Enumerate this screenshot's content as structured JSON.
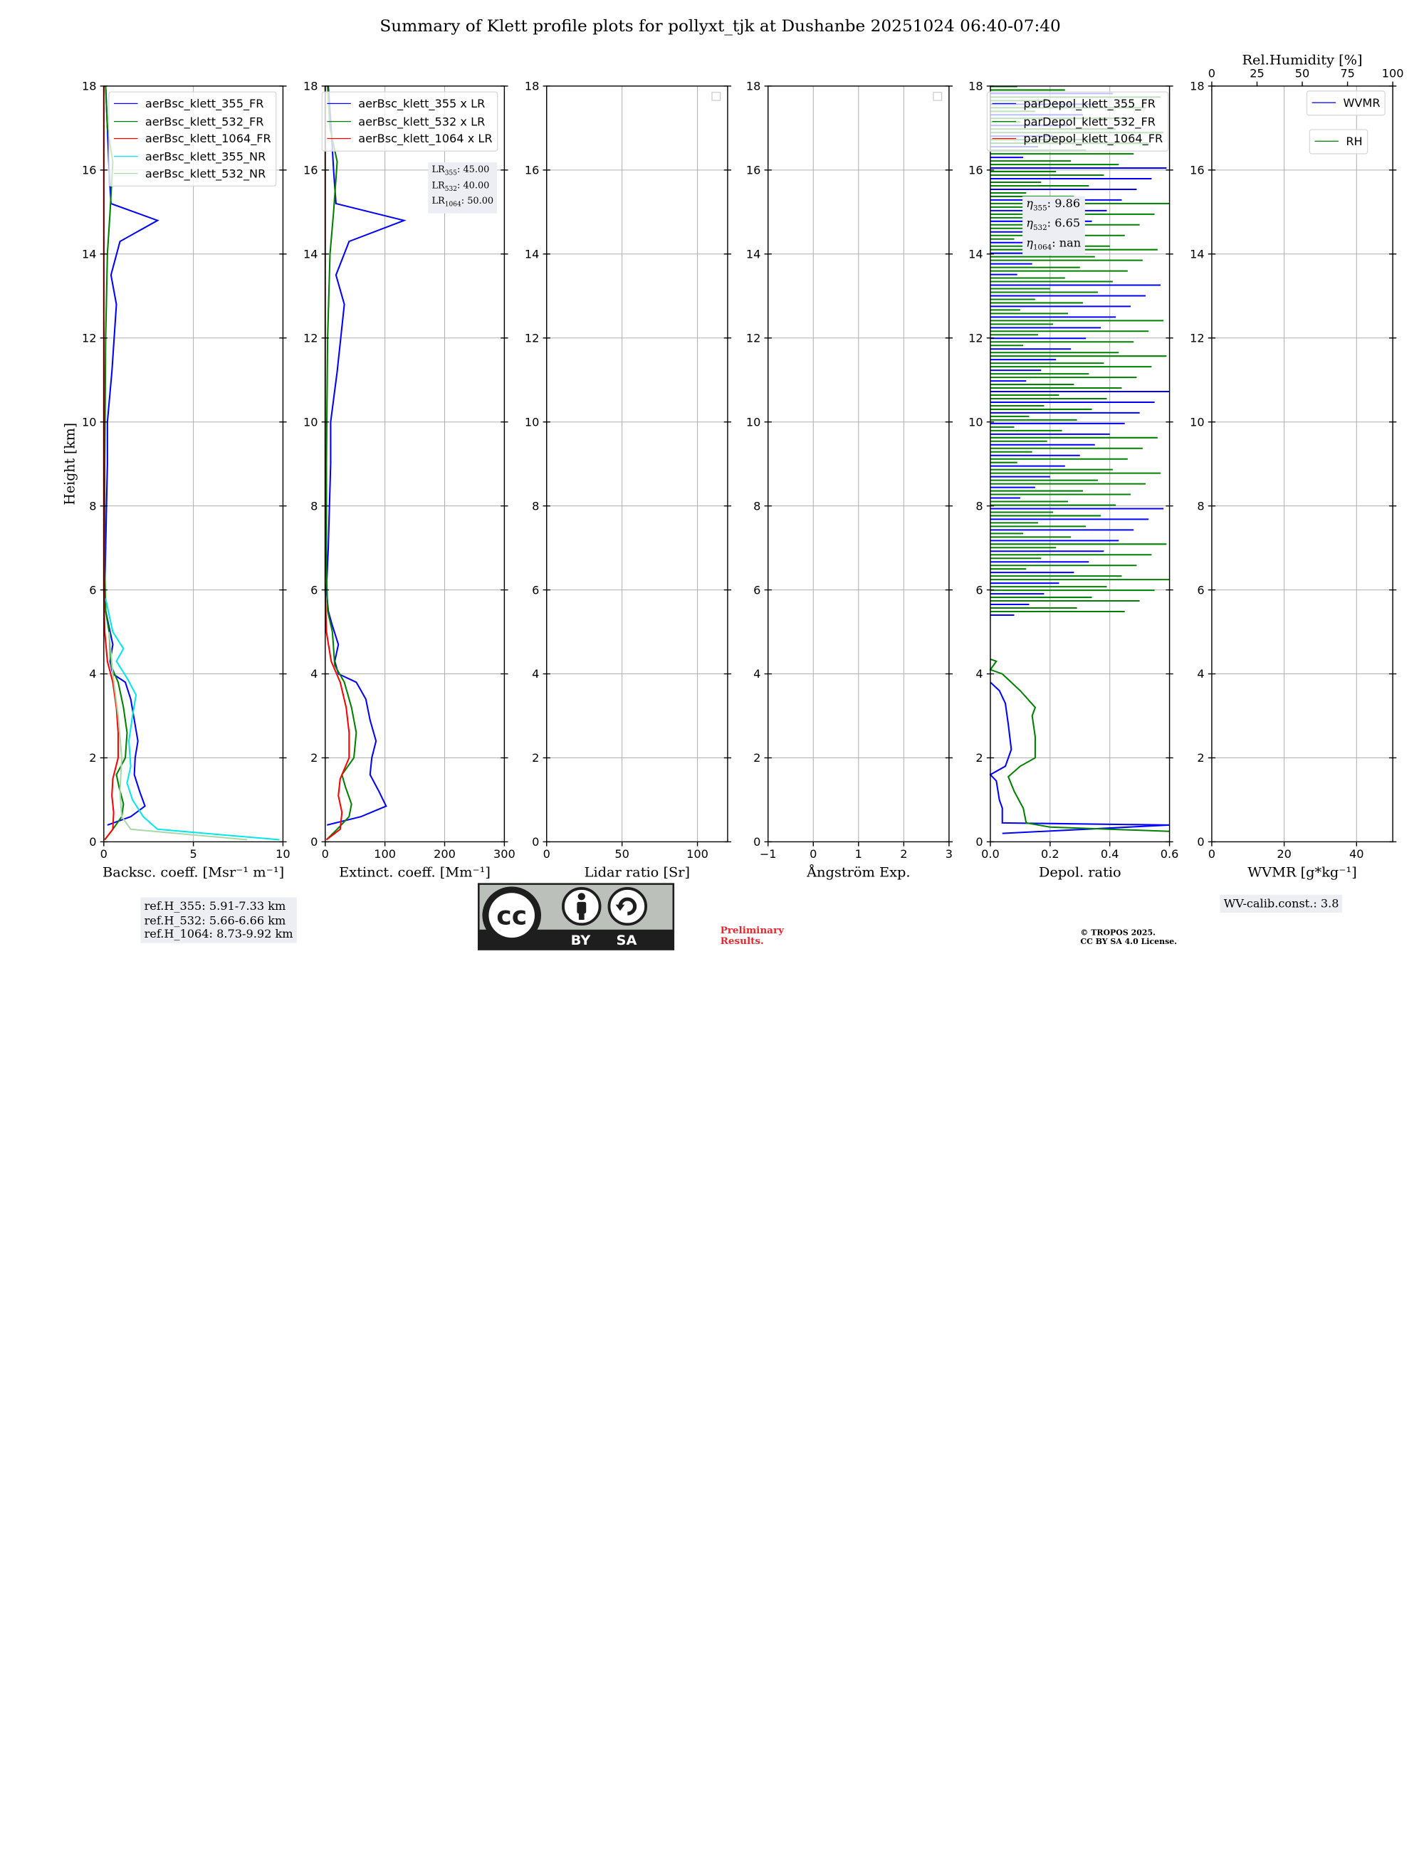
{
  "title": "Summary of Klett profile plots for pollyxt_tjk at Dushanbe 20251024 06:40-07:40",
  "colors": {
    "blue": "#0000ff",
    "green": "#008000",
    "red": "#ff0000",
    "cyan": "#00e5ee",
    "lightblue": "#b4b4ff",
    "lightgreen": "#a8d8a8",
    "grid": "#b0b0b0"
  },
  "chart_data": [
    {
      "type": "line",
      "name": "backscatter",
      "xlabel": "Backsc. coeff. [Msr⁻¹ m⁻¹]",
      "ylabel": "Height [km]",
      "xlim": [
        0,
        10
      ],
      "ylim": [
        0,
        18
      ],
      "xticks": [
        "0",
        "5",
        "10"
      ],
      "yticks": [
        "0",
        "2",
        "4",
        "6",
        "8",
        "10",
        "12",
        "14",
        "16",
        "18"
      ],
      "legend": [
        "aerBsc_klett_355_FR",
        "aerBsc_klett_532_FR",
        "aerBsc_klett_1064_FR",
        "aerBsc_klett_355_NR",
        "aerBsc_klett_532_NR"
      ],
      "series": [
        {
          "name": "aerBsc_klett_355_FR",
          "color": "blue",
          "points": [
            [
              0.2,
              0.4
            ],
            [
              1.5,
              0.6
            ],
            [
              2.3,
              0.85
            ],
            [
              2.0,
              1.2
            ],
            [
              1.7,
              1.6
            ],
            [
              1.75,
              2.0
            ],
            [
              1.9,
              2.4
            ],
            [
              1.7,
              2.9
            ],
            [
              1.5,
              3.4
            ],
            [
              1.2,
              3.8
            ],
            [
              0.5,
              4.0
            ],
            [
              0.35,
              4.3
            ],
            [
              0.5,
              4.7
            ],
            [
              0.25,
              5.2
            ],
            [
              0.1,
              5.5
            ],
            [
              0.05,
              6.0
            ],
            [
              0.1,
              7.0
            ],
            [
              0.15,
              8.0
            ],
            [
              0.2,
              9.0
            ],
            [
              0.2,
              10.0
            ],
            [
              0.45,
              11.2
            ],
            [
              0.7,
              12.8
            ],
            [
              0.4,
              13.5
            ],
            [
              0.9,
              14.3
            ],
            [
              3.0,
              14.8
            ],
            [
              0.4,
              15.2
            ],
            [
              0.3,
              16.0
            ],
            [
              0.2,
              17.0
            ],
            [
              0.1,
              18.0
            ]
          ]
        },
        {
          "name": "aerBsc_klett_532_FR",
          "color": "green",
          "points": [
            [
              0.05,
              0.05
            ],
            [
              0.5,
              0.3
            ],
            [
              1.0,
              0.6
            ],
            [
              1.1,
              0.9
            ],
            [
              0.85,
              1.3
            ],
            [
              0.7,
              1.6
            ],
            [
              1.2,
              2.0
            ],
            [
              1.3,
              2.6
            ],
            [
              1.1,
              3.2
            ],
            [
              0.8,
              3.8
            ],
            [
              0.4,
              4.2
            ],
            [
              0.3,
              5.0
            ],
            [
              0.1,
              5.5
            ],
            [
              0.05,
              6.5
            ],
            [
              0.05,
              9.0
            ],
            [
              0.1,
              12.0
            ],
            [
              0.2,
              14.0
            ],
            [
              0.35,
              15.0
            ],
            [
              0.5,
              16.2
            ],
            [
              0.2,
              17.0
            ],
            [
              0.1,
              18.0
            ]
          ]
        },
        {
          "name": "aerBsc_klett_1064_FR",
          "color": "red",
          "points": [
            [
              0.05,
              0.05
            ],
            [
              0.5,
              0.3
            ],
            [
              0.55,
              0.7
            ],
            [
              0.45,
              1.1
            ],
            [
              0.5,
              1.5
            ],
            [
              0.8,
              2.0
            ],
            [
              0.8,
              2.6
            ],
            [
              0.7,
              3.2
            ],
            [
              0.5,
              3.8
            ],
            [
              0.2,
              4.3
            ],
            [
              0.05,
              5.0
            ],
            [
              0.0,
              6.0
            ],
            [
              0.0,
              18.0
            ]
          ]
        },
        {
          "name": "aerBsc_klett_355_NR",
          "color": "cyan",
          "points": [
            [
              9.8,
              0.05
            ],
            [
              3.0,
              0.3
            ],
            [
              2.2,
              0.6
            ],
            [
              1.6,
              1.0
            ],
            [
              1.3,
              1.4
            ],
            [
              1.5,
              1.8
            ],
            [
              1.4,
              2.4
            ],
            [
              1.6,
              3.0
            ],
            [
              1.8,
              3.5
            ],
            [
              1.3,
              3.9
            ],
            [
              0.7,
              4.3
            ],
            [
              1.1,
              4.6
            ],
            [
              0.5,
              5.0
            ],
            [
              0.3,
              5.4
            ],
            [
              0.1,
              5.8
            ]
          ]
        },
        {
          "name": "aerBsc_klett_532_NR",
          "color": "lightgreen",
          "points": [
            [
              8.0,
              0.05
            ],
            [
              1.5,
              0.3
            ],
            [
              1.0,
              0.6
            ],
            [
              0.9,
              1.2
            ],
            [
              1.0,
              2.0
            ],
            [
              0.8,
              3.0
            ],
            [
              0.5,
              4.0
            ],
            [
              0.3,
              5.0
            ]
          ]
        }
      ],
      "refh": [
        "ref.H_355: 5.91-7.33 km",
        "ref.H_532: 5.66-6.66 km",
        "ref.H_1064: 8.73-9.92 km"
      ]
    },
    {
      "type": "line",
      "name": "extinction",
      "xlabel": "Extinct. coeff. [Mm⁻¹]",
      "xlim": [
        0,
        300
      ],
      "ylim": [
        0,
        18
      ],
      "xticks": [
        "0",
        "100",
        "200",
        "300"
      ],
      "yticks": [
        "0",
        "2",
        "4",
        "6",
        "8",
        "10",
        "12",
        "14",
        "16",
        "18"
      ],
      "legend": [
        "aerBsc_klett_355 x LR",
        "aerBsc_klett_532 x LR",
        "aerBsc_klett_1064 x LR"
      ],
      "lr": {
        "l355": "LR",
        "v355": ": 45.00",
        "s355": "355",
        "l532": "LR",
        "v532": ": 40.00",
        "s532": "532",
        "l1064": "LR",
        "v1064": ": 50.00",
        "s1064": "1064"
      },
      "series": [
        {
          "name": "355",
          "color": "blue",
          "points": [
            [
              3,
              0.4
            ],
            [
              60,
              0.6
            ],
            [
              102,
              0.85
            ],
            [
              90,
              1.2
            ],
            [
              75,
              1.6
            ],
            [
              78,
              2.0
            ],
            [
              85,
              2.4
            ],
            [
              75,
              2.9
            ],
            [
              68,
              3.4
            ],
            [
              52,
              3.8
            ],
            [
              22,
              4.0
            ],
            [
              16,
              4.3
            ],
            [
              22,
              4.7
            ],
            [
              11,
              5.2
            ],
            [
              5,
              5.5
            ],
            [
              2,
              6.0
            ],
            [
              5,
              7.0
            ],
            [
              7,
              8.0
            ],
            [
              9,
              9.0
            ],
            [
              9,
              10.0
            ],
            [
              20,
              11.2
            ],
            [
              32,
              12.8
            ],
            [
              18,
              13.5
            ],
            [
              40,
              14.3
            ],
            [
              132,
              14.8
            ],
            [
              18,
              15.2
            ],
            [
              14,
              16.0
            ],
            [
              10,
              17.0
            ],
            [
              5,
              18.0
            ]
          ]
        },
        {
          "name": "532",
          "color": "green",
          "points": [
            [
              2,
              0.05
            ],
            [
              20,
              0.3
            ],
            [
              40,
              0.6
            ],
            [
              44,
              0.9
            ],
            [
              34,
              1.3
            ],
            [
              28,
              1.6
            ],
            [
              48,
              2.0
            ],
            [
              52,
              2.6
            ],
            [
              44,
              3.2
            ],
            [
              32,
              3.8
            ],
            [
              16,
              4.2
            ],
            [
              12,
              5.0
            ],
            [
              4,
              5.5
            ],
            [
              2,
              6.5
            ],
            [
              2,
              9.0
            ],
            [
              4,
              12.0
            ],
            [
              8,
              14.0
            ],
            [
              14,
              15.0
            ],
            [
              20,
              16.2
            ],
            [
              8,
              17.0
            ],
            [
              4,
              18.0
            ]
          ]
        },
        {
          "name": "1064",
          "color": "red",
          "points": [
            [
              2,
              0.05
            ],
            [
              25,
              0.3
            ],
            [
              28,
              0.7
            ],
            [
              22,
              1.1
            ],
            [
              25,
              1.5
            ],
            [
              40,
              2.0
            ],
            [
              40,
              2.6
            ],
            [
              35,
              3.2
            ],
            [
              25,
              3.8
            ],
            [
              10,
              4.3
            ],
            [
              2,
              5.0
            ],
            [
              0,
              6.0
            ],
            [
              0,
              18.0
            ]
          ]
        }
      ]
    },
    {
      "type": "line",
      "name": "lidar_ratio",
      "xlabel": "Lidar ratio [Sr]",
      "xlim": [
        0,
        120
      ],
      "ylim": [
        0,
        18
      ],
      "xticks": [
        "0",
        "50",
        "100"
      ],
      "yticks": [
        "0",
        "2",
        "4",
        "6",
        "8",
        "10",
        "12",
        "14",
        "16",
        "18"
      ],
      "series": []
    },
    {
      "type": "line",
      "name": "angstrom",
      "xlabel": "Ångström Exp.",
      "xlim": [
        -1,
        3
      ],
      "ylim": [
        0,
        18
      ],
      "xticks": [
        "−1",
        "0",
        "1",
        "2",
        "3"
      ],
      "yticks": [
        "0",
        "2",
        "4",
        "6",
        "8",
        "10",
        "12",
        "14",
        "16",
        "18"
      ],
      "series": []
    },
    {
      "type": "line",
      "name": "depol",
      "xlabel": "Depol. ratio",
      "xlim": [
        0,
        0.6
      ],
      "ylim": [
        0,
        18
      ],
      "xticks": [
        "0.0",
        "0.2",
        "0.4",
        "0.6"
      ],
      "yticks": [
        "0",
        "2",
        "4",
        "6",
        "8",
        "10",
        "12",
        "14",
        "16",
        "18"
      ],
      "legend": [
        "parDepol_klett_355_FR",
        "parDepol_klett_532_FR",
        "parDepol_klett_1064_FR"
      ],
      "eta": {
        "l355": "η",
        "s355": "355",
        "v355": ": 9.86",
        "l532": "η",
        "s532": "532",
        "v532": ": 6.65",
        "l1064": "η",
        "s1064": "1064",
        "v1064": ": nan"
      },
      "series": [
        {
          "name": "parDepol_klett_355_FR",
          "color": "blue",
          "points": [
            [
              0.04,
              0.2
            ],
            [
              0.6,
              0.4
            ],
            [
              0.04,
              0.45
            ],
            [
              0.04,
              0.8
            ],
            [
              0.03,
              1.0
            ],
            [
              0.02,
              1.45
            ],
            [
              0.0,
              1.6
            ],
            [
              0.05,
              1.8
            ],
            [
              0.07,
              2.2
            ],
            [
              0.06,
              2.8
            ],
            [
              0.05,
              3.3
            ],
            [
              0.03,
              3.6
            ],
            [
              0.0,
              3.8
            ]
          ]
        },
        {
          "name": "parDepol_klett_532_FR",
          "color": "green",
          "points": [
            [
              0.6,
              0.25
            ],
            [
              0.2,
              0.35
            ],
            [
              0.12,
              0.45
            ],
            [
              0.11,
              0.8
            ],
            [
              0.08,
              1.2
            ],
            [
              0.06,
              1.55
            ],
            [
              0.1,
              1.8
            ],
            [
              0.15,
              2.0
            ],
            [
              0.15,
              2.5
            ],
            [
              0.14,
              3.0
            ],
            [
              0.15,
              3.2
            ],
            [
              0.1,
              3.6
            ],
            [
              0.04,
              4.0
            ],
            [
              0.0,
              4.1
            ],
            [
              0.02,
              4.3
            ],
            [
              0.0,
              4.35
            ]
          ]
        }
      ]
    },
    {
      "type": "line",
      "name": "wvmr",
      "xlabel": "WVMR [g*kg⁻¹]",
      "top_xlabel": "Rel.Humidity [%]",
      "xlim": [
        0,
        50
      ],
      "top_xlim": [
        0,
        100
      ],
      "ylim": [
        0,
        18
      ],
      "xticks": [
        "0",
        "20",
        "40"
      ],
      "top_xticks": [
        "0",
        "25",
        "50",
        "75",
        "100"
      ],
      "yticks": [
        "0",
        "2",
        "4",
        "6",
        "8",
        "10",
        "12",
        "14",
        "16",
        "18"
      ],
      "legend": [
        "WVMR",
        "RH"
      ],
      "calib": "WV-calib.const.: 3.8",
      "series": []
    }
  ],
  "footer": {
    "preliminary": [
      "Preliminary",
      "Results."
    ],
    "copyright": [
      "© TROPOS 2025.",
      "CC BY SA 4.0 License."
    ],
    "badge": {
      "by": "BY",
      "sa": "SA",
      "cc": "cc"
    }
  }
}
